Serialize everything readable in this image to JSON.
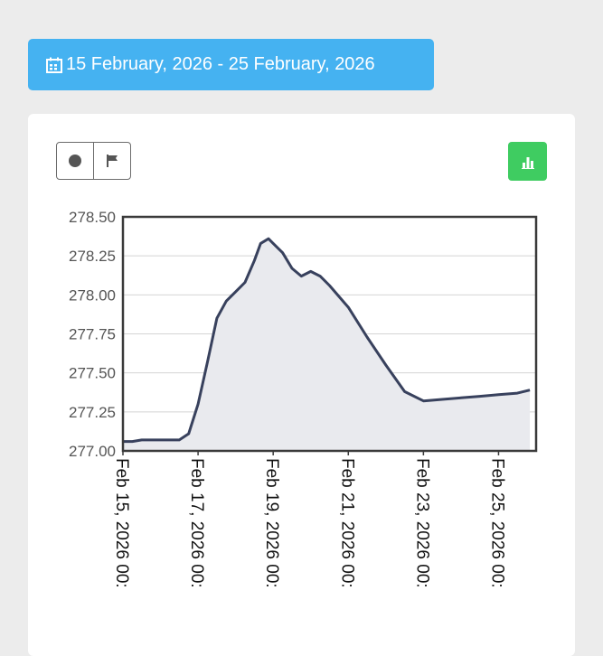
{
  "date_range": {
    "label": "15 February, 2026 - 25 February, 2026",
    "icon": "calendar-icon"
  },
  "toolbar": {
    "toggle_icons": [
      "circle-icon",
      "flag-icon"
    ],
    "chart_button_icon": "bar-chart-icon",
    "chart_button_color": "#3fcc61"
  },
  "colors": {
    "accent": "#45b2f1",
    "line": "#38415d",
    "area": "#e9eaee",
    "grid": "#d4d4d4"
  },
  "chart_data": {
    "type": "area",
    "grid": true,
    "ylim": [
      277.0,
      278.5
    ],
    "xlim": [
      "2026-02-15 00:00",
      "2026-02-26 00:00"
    ],
    "y_ticks": [
      "278.50",
      "278.25",
      "278.00",
      "277.75",
      "277.50",
      "277.25",
      "277.00"
    ],
    "x_ticks": [
      "Feb 15, 2026 00:",
      "Feb 17, 2026 00:",
      "Feb 19, 2026 00:",
      "Feb 21, 2026 00:",
      "Feb 23, 2026 00:",
      "Feb 25, 2026 00:"
    ],
    "series": [
      {
        "x": [
          "2026-02-15 00:00",
          "2026-02-15 06:00",
          "2026-02-15 12:00",
          "2026-02-16 00:00",
          "2026-02-16 12:00",
          "2026-02-16 18:00",
          "2026-02-17 00:00",
          "2026-02-17 06:00",
          "2026-02-17 12:00",
          "2026-02-17 18:00",
          "2026-02-18 00:00",
          "2026-02-18 06:00",
          "2026-02-18 12:00",
          "2026-02-18 16:00",
          "2026-02-18 21:00",
          "2026-02-19 00:00",
          "2026-02-19 06:00",
          "2026-02-19 12:00",
          "2026-02-19 18:00",
          "2026-02-20 00:00",
          "2026-02-20 06:00",
          "2026-02-20 12:00",
          "2026-02-21 00:00",
          "2026-02-21 12:00",
          "2026-02-22 00:00",
          "2026-02-22 12:00",
          "2026-02-23 00:00",
          "2026-02-23 12:00",
          "2026-02-24 00:00",
          "2026-02-24 12:00",
          "2026-02-25 00:00",
          "2026-02-25 12:00",
          "2026-02-25 20:00"
        ],
        "values": [
          277.06,
          277.06,
          277.07,
          277.07,
          277.07,
          277.11,
          277.3,
          277.57,
          277.85,
          277.96,
          278.02,
          278.08,
          278.22,
          278.33,
          278.36,
          278.33,
          278.27,
          278.17,
          278.12,
          278.15,
          278.12,
          278.06,
          277.92,
          277.73,
          277.55,
          277.38,
          277.32,
          277.33,
          277.34,
          277.35,
          277.36,
          277.37,
          277.39
        ]
      }
    ]
  }
}
